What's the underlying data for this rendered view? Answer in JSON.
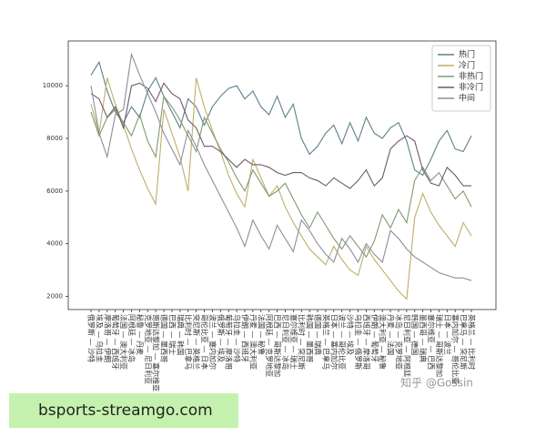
{
  "chart_data": {
    "type": "line",
    "categories": [
      "俄罗斯 — 沙特",
      "埃及 — 乌拉圭",
      "摩洛哥 — 伊朗",
      "葡萄牙 — 西班牙",
      "法国 — 澳大利亚",
      "阿根廷 — 冰岛",
      "秘鲁 — 丹麦",
      "克罗地亚 — 尼日利亚",
      "哥斯达黎加 — 塞尔维亚",
      "德国 — 墨西哥",
      "巴西 — 瑞士",
      "瑞典 — 韩国",
      "比利时 — 巴拿马",
      "突尼斯 — 英格兰",
      "哥伦比亚 — 日本",
      "波兰 — 塞内加尔",
      "俄罗斯 — 埃及",
      "葡萄牙 — 摩洛哥",
      "乌拉圭 — 沙特",
      "伊朗 — 西班牙",
      "丹麦 — 澳大利亚",
      "法国 — 秘鲁",
      "阿根廷 — 克罗地亚",
      "巴西 — 哥斯达黎加",
      "尼日利亚 — 冰岛",
      "塞尔维亚 — 瑞士",
      "比利时 — 突尼斯",
      "韩国 — 墨西哥",
      "德国 — 瑞典",
      "英格兰 — 巴拿马",
      "日本 — 塞内加尔",
      "波兰 — 哥伦比亚",
      "沙特 — 埃及",
      "乌拉圭 — 俄罗斯",
      "西班牙 — 摩洛哥",
      "伊朗 — 葡萄牙",
      "澳大利亚 — 秘鲁",
      "丹麦 — 法国",
      "冰岛 — 克罗地亚",
      "尼日利亚 — 阿根廷",
      "韩国 — 德国",
      "墨西哥 — 瑞典",
      "塞尔维亚 — 巴西",
      "瑞士 — 哥斯达黎加",
      "日本 — 波兰",
      "塞内加尔 — 哥伦比亚",
      "巴拿马 — 突尼斯",
      "英格兰 — 比利时"
    ],
    "series": [
      {
        "name": "热门",
        "color": "#5c8088",
        "values": [
          10400,
          10900,
          9800,
          9000,
          8600,
          9200,
          8800,
          9800,
          10300,
          9600,
          9000,
          8400,
          9500,
          9200,
          8500,
          9200,
          9600,
          9900,
          10000,
          9500,
          9800,
          9200,
          8900,
          9600,
          8800,
          9300,
          8000,
          7400,
          7700,
          8200,
          8500,
          7800,
          8600,
          7900,
          8800,
          8200,
          8000,
          8400,
          8600,
          7900,
          6800,
          6600,
          7200,
          7900,
          8300,
          7600,
          7500,
          8100
        ]
      },
      {
        "name": "冷门",
        "color": "#bfae6a",
        "values": [
          9300,
          8200,
          10300,
          9300,
          8500,
          7600,
          6800,
          6100,
          5500,
          9100,
          8200,
          7300,
          6000,
          10300,
          9200,
          8300,
          7500,
          6600,
          5900,
          5400,
          7200,
          6500,
          5800,
          6200,
          5400,
          4800,
          4300,
          3800,
          3500,
          3200,
          3900,
          3400,
          3000,
          2800,
          3900,
          3400,
          3000,
          2600,
          2200,
          1900,
          5000,
          5900,
          5200,
          4700,
          4300,
          3900,
          4800,
          4300
        ]
      },
      {
        "name": "非热门",
        "color": "#7f9a72",
        "values": [
          9000,
          8100,
          8800,
          9100,
          8600,
          8100,
          8900,
          7900,
          7300,
          9600,
          9200,
          8700,
          8100,
          7500,
          8800,
          8200,
          7600,
          7100,
          6500,
          6000,
          6800,
          6300,
          5800,
          6000,
          6300,
          5700,
          5100,
          4600,
          5200,
          4700,
          4200,
          3800,
          4300,
          3900,
          3500,
          4100,
          5100,
          4600,
          5300,
          4800,
          6400,
          6900,
          6400,
          6700,
          6200,
          5700,
          6000,
          5400
        ]
      },
      {
        "name": "非冷门",
        "color": "#6e5a6c",
        "values": [
          9700,
          9500,
          8800,
          9200,
          8400,
          10000,
          10100,
          9900,
          9400,
          10100,
          9700,
          9500,
          8700,
          8400,
          7700,
          7700,
          7500,
          7200,
          6900,
          7200,
          7000,
          7000,
          6900,
          6700,
          6600,
          6700,
          6700,
          6500,
          6400,
          6200,
          6500,
          6300,
          6100,
          6400,
          6800,
          6200,
          6500,
          7600,
          7900,
          8100,
          7900,
          6800,
          6300,
          6200,
          6900,
          6600,
          6200,
          6200
        ]
      },
      {
        "name": "中间",
        "color": "#8c8e9a",
        "values": [
          10000,
          8200,
          7300,
          8900,
          9100,
          11200,
          10400,
          9700,
          9000,
          8200,
          7600,
          7000,
          8300,
          7700,
          7000,
          6400,
          5800,
          5200,
          4600,
          3900,
          4900,
          4300,
          3800,
          4700,
          4200,
          3700,
          4900,
          4500,
          4000,
          3600,
          3300,
          4200,
          3800,
          3300,
          4000,
          3600,
          3300,
          4500,
          4200,
          3800,
          3500,
          3300,
          3100,
          2900,
          2800,
          2700,
          2700,
          2600
        ]
      }
    ],
    "ylim": [
      1500,
      11700
    ],
    "yticks": [
      2000,
      4000,
      6000,
      8000,
      10000
    ],
    "grid": false,
    "legend": "upper right"
  },
  "watermark": "知乎 @Gossin",
  "banner": "bsports-streamgo.com"
}
